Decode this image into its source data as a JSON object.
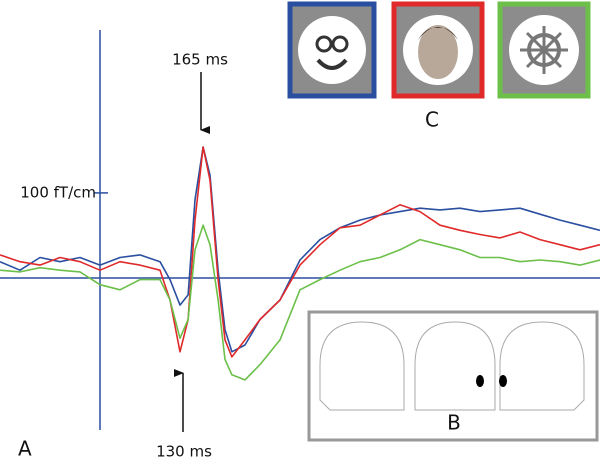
{
  "chart_data": {
    "type": "line",
    "x": [
      -160,
      -128,
      -96,
      -64,
      -32,
      0,
      32,
      64,
      96,
      112,
      128,
      141,
      152,
      165,
      176,
      189,
      200,
      211,
      232,
      256,
      288,
      320,
      352,
      384,
      416,
      448,
      480,
      512,
      544,
      576,
      608,
      640,
      672,
      704,
      736,
      768,
      800
    ],
    "series": [
      {
        "color": "#2b4fa0",
        "values": [
          19,
          9,
          24,
          19,
          24,
          15,
          24,
          27,
          19,
          -2,
          -32,
          -20,
          92,
          154,
          121,
          9,
          -61,
          -87,
          -79,
          -49,
          -26,
          21,
          45,
          59,
          68,
          74,
          78,
          82,
          80,
          82,
          78,
          80,
          82,
          75,
          68,
          62,
          56
        ]
      },
      {
        "color": "#e02a2a",
        "values": [
          27,
          19,
          15,
          24,
          19,
          9,
          19,
          15,
          9,
          -26,
          -87,
          -49,
          68,
          154,
          115,
          -2,
          -73,
          -93,
          -73,
          -49,
          -26,
          15,
          39,
          59,
          62,
          74,
          86,
          78,
          62,
          56,
          51,
          47,
          54,
          45,
          39,
          33,
          39
        ]
      },
      {
        "color": "#6cc04a",
        "values": [
          9,
          7,
          12,
          9,
          7,
          -8,
          -14,
          -2,
          -2,
          -26,
          -71,
          -49,
          33,
          62,
          39,
          -26,
          -96,
          -114,
          -120,
          -102,
          -73,
          -14,
          -2,
          9,
          19,
          24,
          33,
          45,
          39,
          33,
          24,
          24,
          19,
          21,
          19,
          15,
          21
        ]
      }
    ],
    "xlim": [
      -160,
      800
    ],
    "ylim": [
      -219,
      327
    ],
    "yticks": [
      {
        "value": 100,
        "label": "100 fT/cm"
      }
    ],
    "annotations": [
      "165 ms",
      "130 ms",
      "A",
      "B",
      "C"
    ]
  }
}
